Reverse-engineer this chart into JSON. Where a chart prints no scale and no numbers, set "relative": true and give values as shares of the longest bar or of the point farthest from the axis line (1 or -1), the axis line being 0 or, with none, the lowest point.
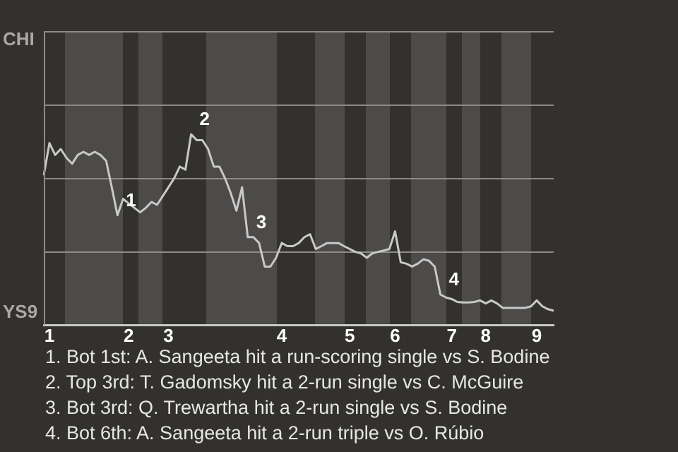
{
  "chart_data": {
    "type": "line",
    "relative": true,
    "categories": [
      null,
      "1",
      null,
      null,
      null,
      null,
      null,
      null,
      null,
      null,
      null,
      null,
      null,
      null,
      null,
      "2",
      null,
      null,
      null,
      null,
      null,
      null,
      "3",
      null,
      null,
      null,
      null,
      null,
      null,
      null,
      null,
      null,
      null,
      null,
      null,
      null,
      null,
      null,
      null,
      null,
      null,
      null,
      "4",
      null,
      null,
      null,
      null,
      null,
      null,
      null,
      null,
      null,
      null,
      null,
      "5",
      null,
      null,
      null,
      null,
      null,
      null,
      null,
      "6",
      null,
      null,
      null,
      null,
      null,
      null,
      null,
      null,
      null,
      "7",
      null,
      null,
      null,
      null,
      null,
      "8",
      null,
      null,
      null,
      null,
      null,
      null,
      null,
      null,
      "9",
      null,
      null,
      null
    ],
    "series": [
      {
        "color": "#c8c8c8",
        "values": [
          0.785,
          0.954,
          0.892,
          0.923,
          0.877,
          0.846,
          0.892,
          0.908,
          0.892,
          0.908,
          0.892,
          0.862,
          0.723,
          0.577,
          0.662,
          0.638,
          0.615,
          0.592,
          0.615,
          0.646,
          0.631,
          0.677,
          0.723,
          0.769,
          0.831,
          0.815,
          1,
          0.969,
          0.969,
          0.923,
          0.831,
          0.831,
          0.769,
          0.692,
          0.6,
          0.723,
          0.462,
          0.462,
          0.431,
          0.308,
          0.308,
          0.354,
          0.431,
          0.415,
          0.415,
          0.431,
          0.462,
          0.477,
          0.4,
          0.415,
          0.431,
          0.431,
          0.431,
          0.415,
          0.4,
          0.385,
          0.377,
          0.354,
          0.377,
          0.385,
          0.392,
          0.4,
          0.492,
          0.331,
          0.323,
          0.308,
          0.323,
          0.346,
          0.338,
          0.308,
          0.162,
          0.146,
          0.138,
          0.123,
          0.12,
          0.12,
          0.123,
          0.131,
          0.115,
          0.131,
          0.115,
          0.092,
          0.092,
          0.092,
          0.092,
          0.092,
          0.1,
          0.131,
          0.1,
          0.085,
          0.077
        ]
      }
    ],
    "legend": false,
    "marker": "none",
    "ref_lines": [
      {
        "axis": "y",
        "value": 0.385,
        "color": "#8c8b88"
      },
      {
        "axis": "y",
        "value": 0.77,
        "color": "#8c8b88"
      }
    ],
    "annotations": [
      {
        "text": "1",
        "y": 0.577
      },
      {
        "text": "2",
        "y": 1
      },
      {
        "text": "3",
        "y": 0.462
      },
      {
        "text": "4",
        "y": 0.162
      },
      "CHI",
      "YS9",
      "1. Bot 1st: A. Sangeeta hit a run-scoring single vs S. Bodine",
      "2. Top 3rd: T. Gadomsky hit a 2-run single vs C. McGuire",
      "3. Bot 3rd: Q. Trewartha hit a 2-run single vs S. Bodine",
      "4. Bot 6th: A. Sangeeta hit a 2-run triple vs O. Rúbio"
    ]
  }
}
